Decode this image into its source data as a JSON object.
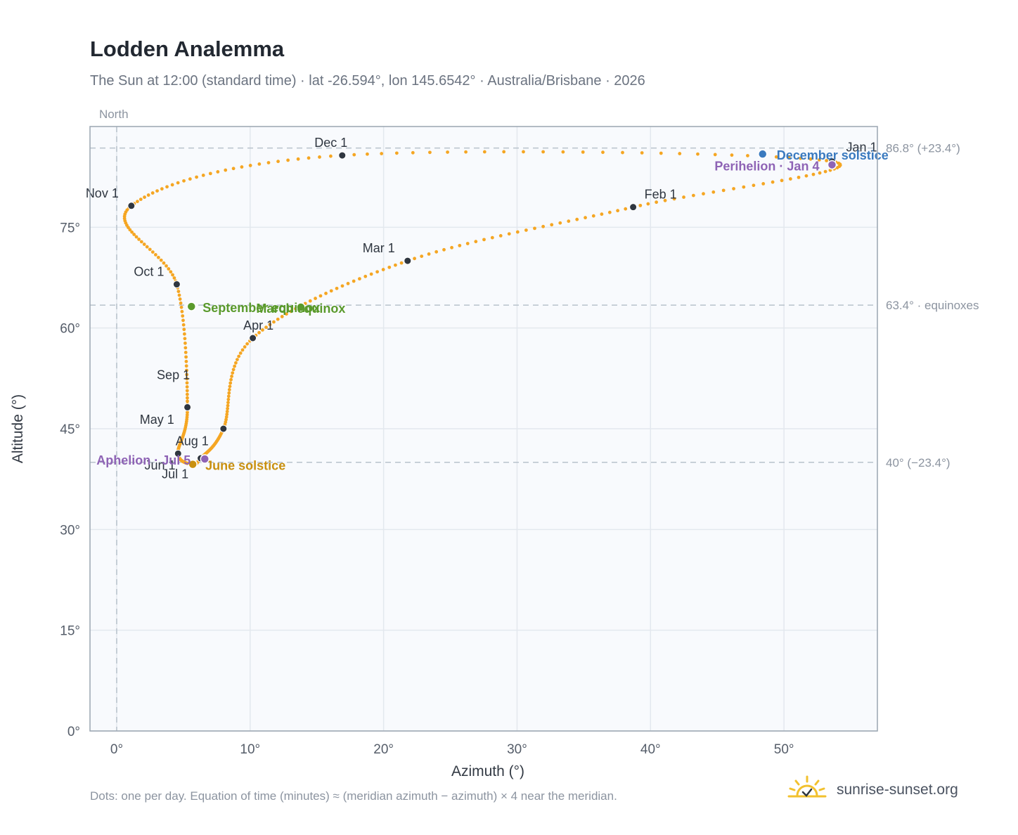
{
  "header": {
    "title": "Lodden Analemma",
    "subtitle": "The Sun at 12:00 (standard time) · lat -26.594°, lon 145.6542° · Australia/Brisbane · 2026"
  },
  "footer": {
    "note": "Dots: one per day. Equation of time (minutes) ≈ (meridian azimuth − azimuth) × 4 near the meridian.",
    "brand": "sunrise-sunset.org"
  },
  "colors": {
    "curve": "#f5a623",
    "month_marker": "#2f3640",
    "equinox": "#5a9a2c",
    "june_solstice": "#c9900f",
    "december_solstice": "#3a7abf",
    "perihelion": "#8e63b5",
    "plot_bg": "#f8fafd",
    "ref_line": "#b8c2cc"
  },
  "chart_data": {
    "type": "scatter",
    "xlabel": "Azimuth (°)",
    "ylabel": "Altitude (°)",
    "xlim": [
      -2,
      57
    ],
    "ylim": [
      0,
      90
    ],
    "x_ticks": [
      0,
      10,
      20,
      30,
      40,
      50
    ],
    "x_tick_labels": [
      "0°",
      "10°",
      "20°",
      "30°",
      "40°",
      "50°"
    ],
    "y_ticks": [
      0,
      15,
      30,
      45,
      60,
      75
    ],
    "y_tick_labels": [
      "0°",
      "15°",
      "30°",
      "45°",
      "60°",
      "75°"
    ],
    "grid": true,
    "north_line": {
      "x": 0,
      "label": "North"
    },
    "reference_lines": [
      {
        "y": 86.8,
        "label": "86.8° (+23.4°)"
      },
      {
        "y": 63.4,
        "label": "63.4° · equinoxes"
      },
      {
        "y": 40.0,
        "label": "40° (−23.4°)"
      }
    ],
    "month_markers": [
      {
        "label": "Jan 1",
        "x": 53.6,
        "y": 84.8
      },
      {
        "label": "Feb 1",
        "x": 38.7,
        "y": 78.0
      },
      {
        "label": "Mar 1",
        "x": 21.8,
        "y": 70.0
      },
      {
        "label": "Apr 1",
        "x": 10.2,
        "y": 58.5
      },
      {
        "label": "May 1",
        "x": 8.0,
        "y": 45.0
      },
      {
        "label": "Jun 1",
        "x": 6.3,
        "y": 40.6
      },
      {
        "label": "Jul 1",
        "x": 5.7,
        "y": 39.7
      },
      {
        "label": "Aug 1",
        "x": 4.6,
        "y": 41.3
      },
      {
        "label": "Sep 1",
        "x": 5.3,
        "y": 48.2
      },
      {
        "label": "Oct 1",
        "x": 4.5,
        "y": 66.5
      },
      {
        "label": "Nov 1",
        "x": 1.1,
        "y": 78.2
      },
      {
        "label": "Dec 1",
        "x": 16.9,
        "y": 85.7
      }
    ],
    "events": [
      {
        "label": "March equinox",
        "x": 13.8,
        "y": 63.1
      },
      {
        "label": "September equinox",
        "x": 5.6,
        "y": 63.2
      },
      {
        "label": "June solstice",
        "x": 5.7,
        "y": 39.7
      },
      {
        "label": "December solstice",
        "x": 48.4,
        "y": 85.9
      },
      {
        "label": "Perihelion · Jan 4",
        "x": 53.6,
        "y": 84.3
      },
      {
        "label": "Aphelion · Jul 5",
        "x": 6.6,
        "y": 40.5
      }
    ],
    "curve_keypoints": [
      {
        "d": 0,
        "x": 53.6,
        "y": 84.8
      },
      {
        "d": 31,
        "x": 38.7,
        "y": 78.0
      },
      {
        "d": 59,
        "x": 21.8,
        "y": 70.0
      },
      {
        "d": 90,
        "x": 10.2,
        "y": 58.5
      },
      {
        "d": 120,
        "x": 8.0,
        "y": 45.0
      },
      {
        "d": 151,
        "x": 6.3,
        "y": 40.6
      },
      {
        "d": 181,
        "x": 5.7,
        "y": 39.7
      },
      {
        "d": 212,
        "x": 4.6,
        "y": 41.3
      },
      {
        "d": 243,
        "x": 5.3,
        "y": 48.2
      },
      {
        "d": 273,
        "x": 4.5,
        "y": 66.5
      },
      {
        "d": 304,
        "x": 1.1,
        "y": 78.2
      },
      {
        "d": 334,
        "x": 16.9,
        "y": 85.7
      },
      {
        "d": 365,
        "x": 53.6,
        "y": 84.8
      }
    ]
  }
}
